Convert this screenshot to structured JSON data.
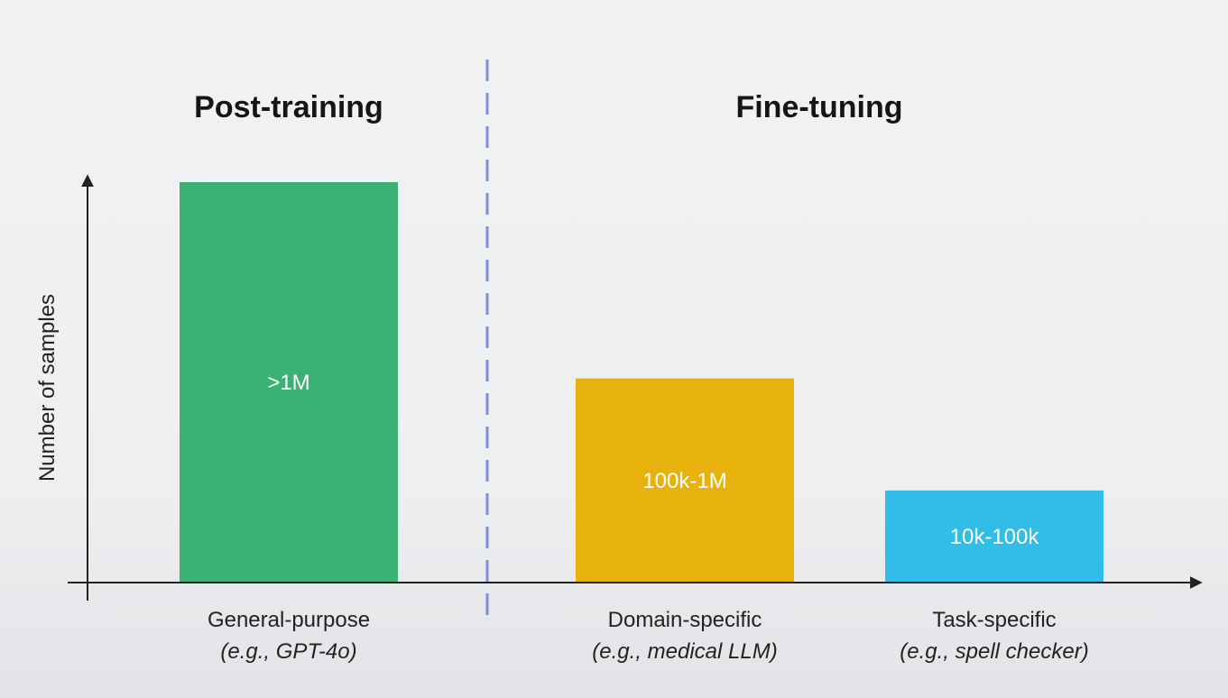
{
  "chart_data": {
    "type": "bar",
    "sections": [
      {
        "title": "Post-training",
        "categories": [
          0
        ]
      },
      {
        "title": "Fine-tuning",
        "categories": [
          1,
          2
        ]
      }
    ],
    "categories": [
      {
        "label": "General-purpose",
        "example": "(e.g., GPT-4o)",
        "value_label": ">1M",
        "value": 1.0,
        "color": "#3bb273"
      },
      {
        "label": "Domain-specific",
        "example": "(e.g., medical LLM)",
        "value_label": "100k-1M",
        "value": 0.51,
        "color": "#e8b20c"
      },
      {
        "label": "Task-specific",
        "example": "(e.g., spell checker)",
        "value_label": "10k-100k",
        "value": 0.23,
        "color": "#31bde8"
      }
    ],
    "ylabel": "Number of samples",
    "xlabel": "",
    "ylim": [
      0,
      1.0
    ],
    "grid": false,
    "divider_color": "#7b8fe0"
  }
}
